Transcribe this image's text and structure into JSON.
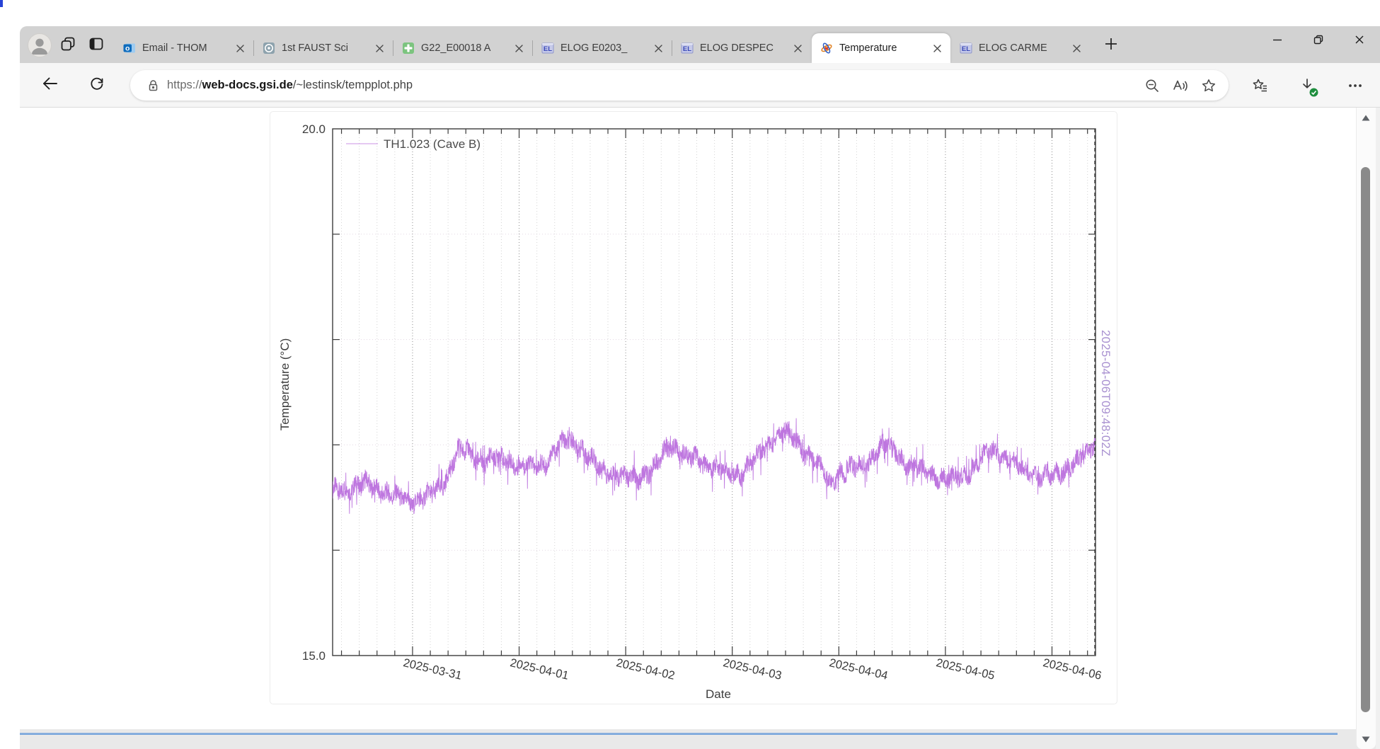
{
  "colors": {
    "accent_purple": "#bb6fdd",
    "legend_sample_purple": "rgba(187,111,221,0.38)",
    "annotation_purple": "#a890d0",
    "download_badge_green": "#1e8e3e",
    "footer_line_blue": "#7aa7dc"
  },
  "browser": {
    "profile": {
      "icon": "avatar"
    },
    "strip_buttons": [
      {
        "icon": "workspaces"
      },
      {
        "icon": "tab-actions"
      }
    ],
    "tabs": [
      {
        "title": "Email - THOM",
        "icon": "outlook",
        "active": false
      },
      {
        "title": "1st FAUST Sci",
        "icon": "indico",
        "active": false
      },
      {
        "title": "G22_E00018 A",
        "icon": "green-plus",
        "active": false
      },
      {
        "title": "ELOG E0203_",
        "icon": "elog",
        "active": false
      },
      {
        "title": "ELOG DESPEC",
        "icon": "elog",
        "active": false
      },
      {
        "title": "Temperature",
        "icon": "atom",
        "active": true
      },
      {
        "title": "ELOG CARME",
        "icon": "elog",
        "active": false
      }
    ],
    "window_controls": [
      "minimize",
      "restore",
      "close"
    ],
    "url": {
      "scheme": "https://",
      "host": "web-docs.gsi.de",
      "path": "/~lestinsk/tempplot.php"
    },
    "urlbar_icons": [
      "zoom-out",
      "read-aloud",
      "favorite-star"
    ],
    "toolbar_right_icons": [
      "favorites-list",
      "downloads",
      "more-menu"
    ]
  },
  "chart_data": {
    "type": "line",
    "title": "",
    "xlabel": "Date",
    "ylabel": "Temperature (°C)",
    "ylim": [
      15.0,
      20.0
    ],
    "y_tick_values": [
      20.0,
      15.0
    ],
    "y_tick_labels": [
      "20.0",
      "15.0"
    ],
    "y_grid_values": [
      16,
      17,
      18,
      19
    ],
    "x_start": "2025-03-30T06:00:00Z",
    "x_end": "2025-04-06T09:48:02Z",
    "x_tick_labels": [
      "2025-03-31",
      "2025-04-01",
      "2025-04-02",
      "2025-04-03",
      "2025-04-04",
      "2025-04-05",
      "2025-04-06"
    ],
    "minor_tick_hours": 4,
    "grid": true,
    "legend_position": "top-left",
    "annotation": {
      "text": "2025-04-06T09:48:02Z",
      "color": "#a890d0",
      "style": "vertical-dashed-line-at-last-point"
    },
    "series": [
      {
        "name": "TH1.023 (Cave B)",
        "color": "#bb6fdd",
        "noise_amp": 0.085,
        "spike_chance": 0.94,
        "spike_mult": 2.6,
        "keyframes_hours_temp": [
          [
            0,
            16.55
          ],
          [
            4,
            16.6
          ],
          [
            8,
            16.62
          ],
          [
            12,
            16.55
          ],
          [
            15,
            16.48
          ],
          [
            18,
            16.47
          ],
          [
            21,
            16.5
          ],
          [
            24,
            16.58
          ],
          [
            26,
            16.72
          ],
          [
            28,
            16.93
          ],
          [
            30,
            16.95
          ],
          [
            32,
            16.88
          ],
          [
            34,
            16.84
          ],
          [
            37,
            16.88
          ],
          [
            40,
            16.85
          ],
          [
            42,
            16.8
          ],
          [
            45,
            16.78
          ],
          [
            48,
            16.84
          ],
          [
            51,
            16.98
          ],
          [
            53,
            17.04
          ],
          [
            55,
            17.02
          ],
          [
            57,
            16.9
          ],
          [
            60,
            16.78
          ],
          [
            63,
            16.73
          ],
          [
            66,
            16.68
          ],
          [
            69,
            16.7
          ],
          [
            72,
            16.76
          ],
          [
            74,
            16.88
          ],
          [
            76,
            17.0
          ],
          [
            78,
            16.96
          ],
          [
            80,
            16.88
          ],
          [
            83,
            16.84
          ],
          [
            86,
            16.8
          ],
          [
            89,
            16.72
          ],
          [
            92,
            16.74
          ],
          [
            95,
            16.85
          ],
          [
            98,
            17.0
          ],
          [
            100,
            17.1
          ],
          [
            102,
            17.12
          ],
          [
            104,
            17.05
          ],
          [
            106,
            16.95
          ],
          [
            108,
            16.88
          ],
          [
            110,
            16.78
          ],
          [
            112,
            16.62
          ],
          [
            114,
            16.74
          ],
          [
            117,
            16.77
          ],
          [
            120,
            16.8
          ],
          [
            122,
            16.92
          ],
          [
            124,
            17.0
          ],
          [
            126,
            16.98
          ],
          [
            128,
            16.88
          ],
          [
            130,
            16.8
          ],
          [
            133,
            16.75
          ],
          [
            136,
            16.7
          ],
          [
            139,
            16.67
          ],
          [
            142,
            16.7
          ],
          [
            145,
            16.8
          ],
          [
            147,
            16.9
          ],
          [
            149,
            16.95
          ],
          [
            151,
            16.9
          ],
          [
            153,
            16.82
          ],
          [
            156,
            16.75
          ],
          [
            159,
            16.71
          ],
          [
            162,
            16.7
          ],
          [
            164,
            16.74
          ],
          [
            166,
            16.8
          ],
          [
            168,
            16.85
          ],
          [
            170,
            16.92
          ],
          [
            171.8,
            17.02
          ]
        ]
      }
    ]
  }
}
